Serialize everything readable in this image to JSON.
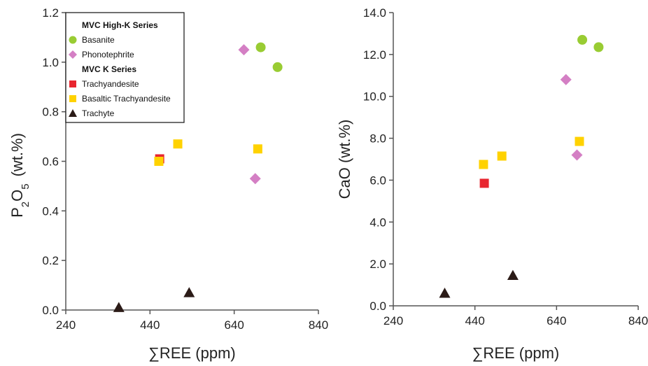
{
  "chart_data": [
    {
      "type": "scatter",
      "xlabel": "∑REE (ppm)",
      "ylabel_main": "P",
      "ylabel_sub": "2",
      "ylabel_main2": "O",
      "ylabel_sub2": "5",
      "ylabel_units": "(wt.%)",
      "xlim": [
        240,
        840
      ],
      "ylim": [
        0,
        1.2
      ],
      "xticks": [
        "240",
        "440",
        "640",
        "840"
      ],
      "yticks": [
        "0.0",
        "0.2",
        "0.4",
        "0.6",
        "0.8",
        "1.0",
        "1.2"
      ],
      "legend": {
        "placement": "top-left",
        "headings": [
          "MVC High-K Series",
          "MVC K Series"
        ],
        "entries": [
          "Basanite",
          "Phonotephrite",
          "Trachyandesite",
          "Basaltic Trachyandesite",
          "Trachyte"
        ]
      },
      "series": [
        {
          "name": "Basanite",
          "marker": "circle",
          "color": "#99cc33",
          "points": [
            [
              703,
              1.06
            ],
            [
              743,
              0.98
            ]
          ]
        },
        {
          "name": "Phonotephrite",
          "marker": "diamond",
          "color": "#d47fc4",
          "points": [
            [
              663,
              1.05
            ],
            [
              690,
              0.53
            ]
          ]
        },
        {
          "name": "Trachyandesite",
          "marker": "square",
          "color": "#e8262f",
          "points": [
            [
              463,
              0.61
            ]
          ]
        },
        {
          "name": "Basaltic Trachyandesite",
          "marker": "square",
          "color": "#ffd200",
          "points": [
            [
              461,
              0.6
            ],
            [
              506,
              0.67
            ],
            [
              696,
              0.65
            ]
          ]
        },
        {
          "name": "Trachyte",
          "marker": "triangle",
          "color": "#2b1b17",
          "points": [
            [
              366,
              0.01
            ],
            [
              533,
              0.07
            ]
          ]
        }
      ]
    },
    {
      "type": "scatter",
      "xlabel": "∑REE (ppm)",
      "ylabel": "CaO  (wt.%)",
      "xlim": [
        240,
        840
      ],
      "ylim": [
        0,
        14
      ],
      "xticks": [
        "240",
        "440",
        "640",
        "840"
      ],
      "yticks": [
        "0.0",
        "2.0",
        "4.0",
        "6.0",
        "8.0",
        "10.0",
        "12.0",
        "14.0"
      ],
      "series": [
        {
          "name": "Basanite",
          "marker": "circle",
          "color": "#99cc33",
          "points": [
            [
              703,
              12.7
            ],
            [
              743,
              12.35
            ]
          ]
        },
        {
          "name": "Phonotephrite",
          "marker": "diamond",
          "color": "#d47fc4",
          "points": [
            [
              663,
              10.8
            ],
            [
              690,
              7.2
            ]
          ]
        },
        {
          "name": "Trachyandesite",
          "marker": "square",
          "color": "#e8262f",
          "points": [
            [
              463,
              5.85
            ]
          ]
        },
        {
          "name": "Basaltic Trachyandesite",
          "marker": "square",
          "color": "#ffd200",
          "points": [
            [
              461,
              6.75
            ],
            [
              506,
              7.15
            ],
            [
              696,
              7.85
            ]
          ]
        },
        {
          "name": "Trachyte",
          "marker": "triangle",
          "color": "#2b1b17",
          "points": [
            [
              366,
              0.6
            ],
            [
              533,
              1.45
            ]
          ]
        }
      ]
    }
  ]
}
